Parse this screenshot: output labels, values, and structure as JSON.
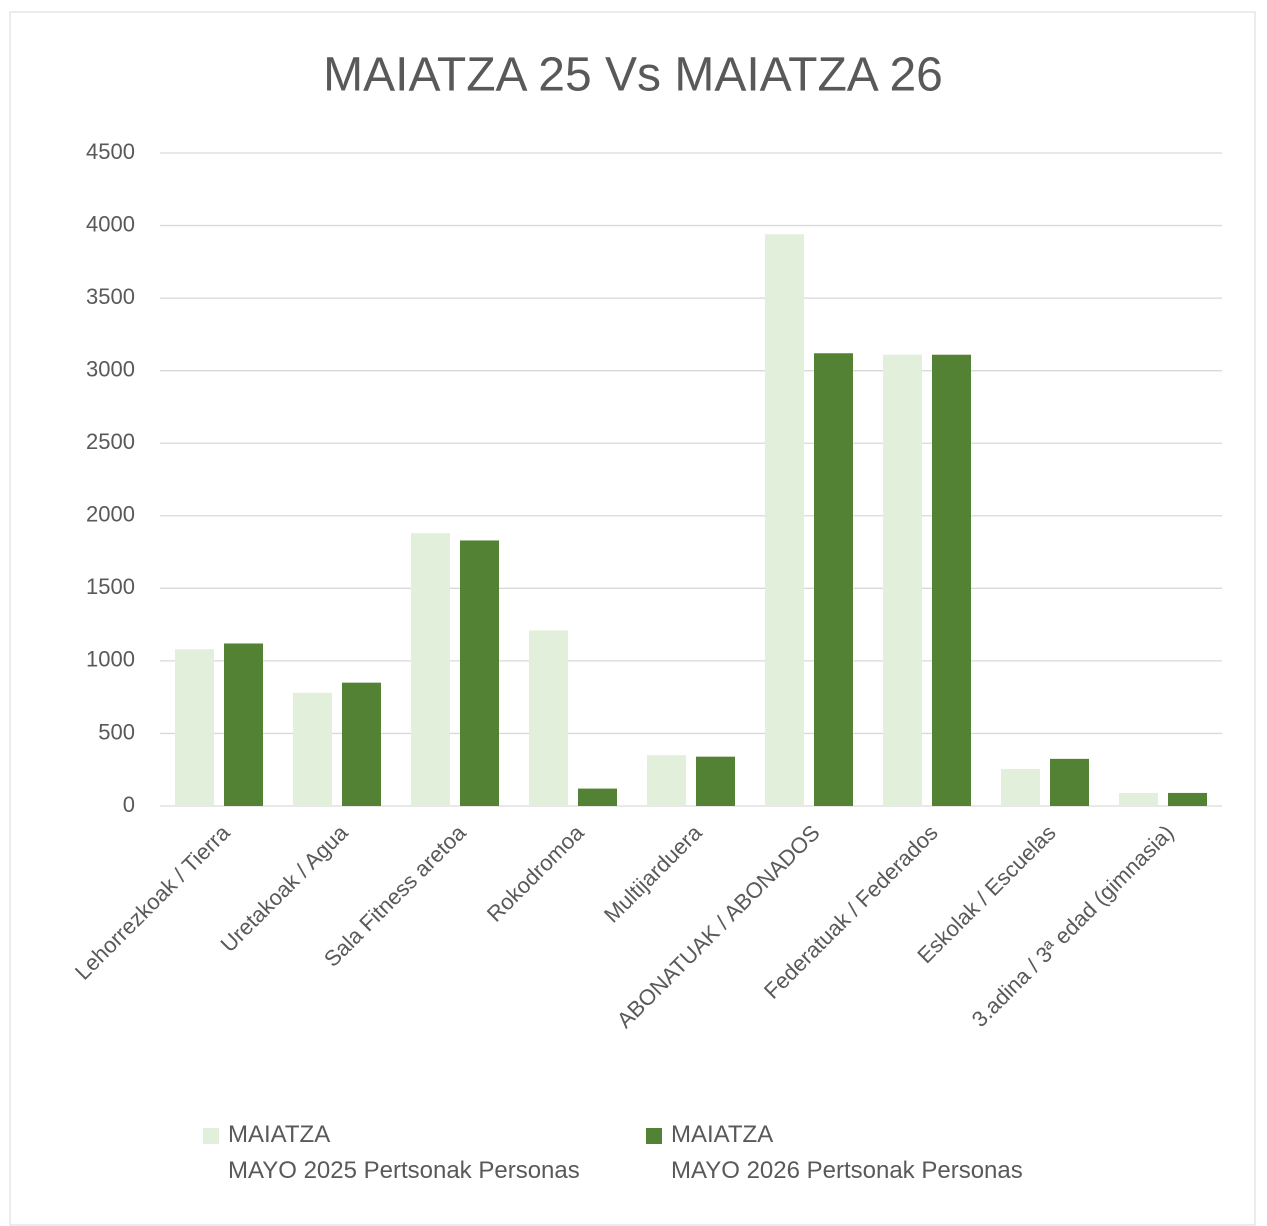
{
  "chart_data": {
    "type": "bar",
    "title": "MAIATZA 25 Vs MAIATZA 26",
    "categories": [
      "Lehorrezkoak / Tierra",
      "Uretakoak / Agua",
      "Sala Fitness aretoa",
      "Rokodromoa",
      "Multijarduera",
      "ABONATUAK / ABONADOS",
      "Federatuak / Federados",
      "Eskolak / Escuelas",
      "3.adina / 3ª edad (gimnasia)"
    ],
    "series": [
      {
        "name": "MAIATZA\nMAYO 2025 Pertsonak Personas",
        "color": "#e2efda",
        "values": [
          1080,
          780,
          1880,
          1210,
          350,
          3940,
          3110,
          255,
          90
        ]
      },
      {
        "name": "MAIATZA\nMAYO 2026 Pertsonak Personas",
        "color": "#548235",
        "values": [
          1120,
          850,
          1830,
          120,
          340,
          3120,
          3110,
          325,
          90
        ]
      }
    ],
    "ylim": [
      0,
      4500
    ],
    "yticks": [
      0,
      500,
      1000,
      1500,
      2000,
      2500,
      3000,
      3500,
      4000,
      4500
    ],
    "grid": true,
    "legend": "bottom"
  }
}
